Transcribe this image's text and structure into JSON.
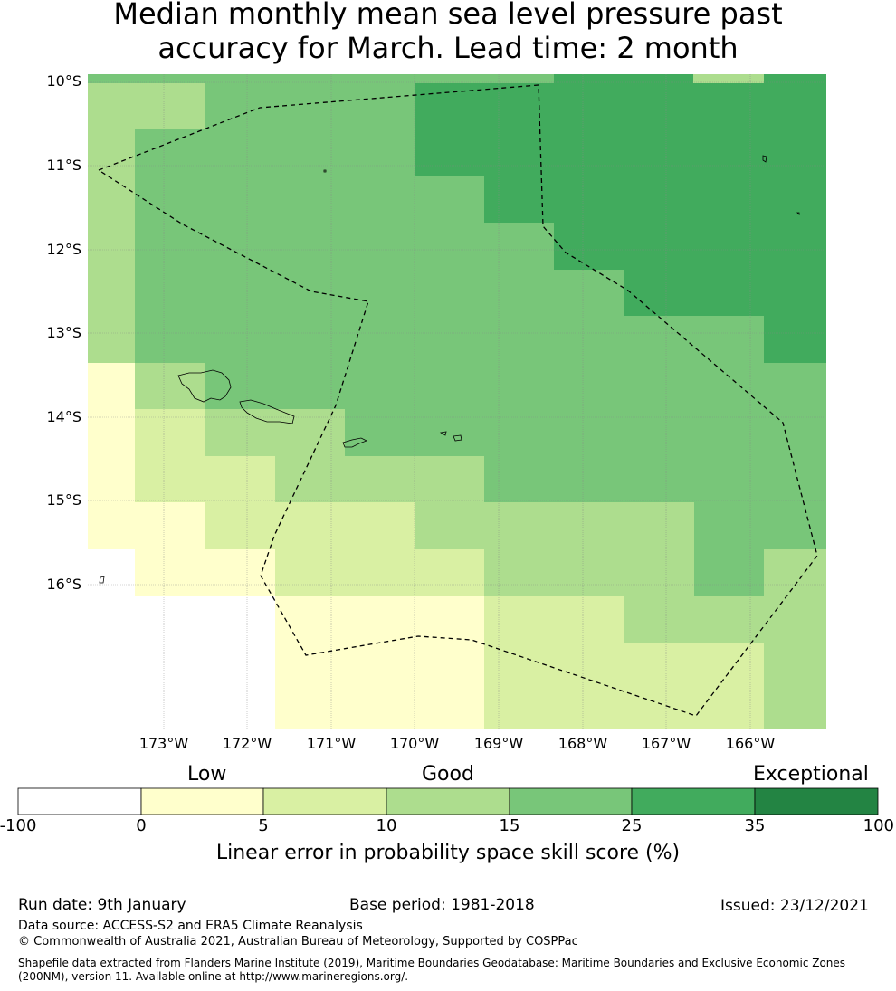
{
  "title": {
    "line1": "Median monthly mean sea level pressure past",
    "line2": "accuracy for March. Lead time: 2 month"
  },
  "map": {
    "lat_labels": [
      "10°S",
      "11°S",
      "12°S",
      "13°S",
      "14°S",
      "15°S",
      "16°S"
    ],
    "lon_labels": [
      "173°W",
      "172°W",
      "171°W",
      "170°W",
      "169°W",
      "168°W",
      "167°W",
      "166°W"
    ],
    "extent": {
      "lon_min": -173.9,
      "lon_max": -165.15,
      "lat_min": -17.8,
      "lat_max": -9.95
    },
    "grid_color": "#888888",
    "boundary_style": "dashed",
    "colors": {
      "below_0": "#ffffff",
      "0_5": "#ffffcc",
      "5_10": "#d9f0a3",
      "10_15": "#addd8e",
      "15_25": "#78c679",
      "25_35": "#41ab5d",
      "35_100": "#238443"
    }
  },
  "colorbar": {
    "categories": [
      "Low",
      "Good",
      "Exceptional"
    ],
    "ticks": [
      "-100",
      "0",
      "5",
      "10",
      "15",
      "25",
      "35",
      "100"
    ],
    "colors": [
      "#ffffff",
      "#ffffcc",
      "#d9f0a3",
      "#addd8e",
      "#78c679",
      "#41ab5d",
      "#238443"
    ],
    "label": "Linear error in probability space skill score (%)"
  },
  "footer": {
    "run_date": "Run date: 9th January",
    "base_period": "Base period: 1981-2018",
    "issued": "Issued: 23/12/2021",
    "data_source": "Data source: ACCESS-S2 and ERA5 Climate Reanalysis",
    "copyright": "© Commonwealth of Australia 2021, Australian Bureau of Meteorology, Supported by COSPPac",
    "shapefile": "Shapefile data extracted from Flanders Marine Institute (2019), Maritime Boundaries Geodatabase: Maritime Boundaries and Exclusive Economic Zones (200NM), version 11. Available online at http://www.marineregions.org/."
  }
}
